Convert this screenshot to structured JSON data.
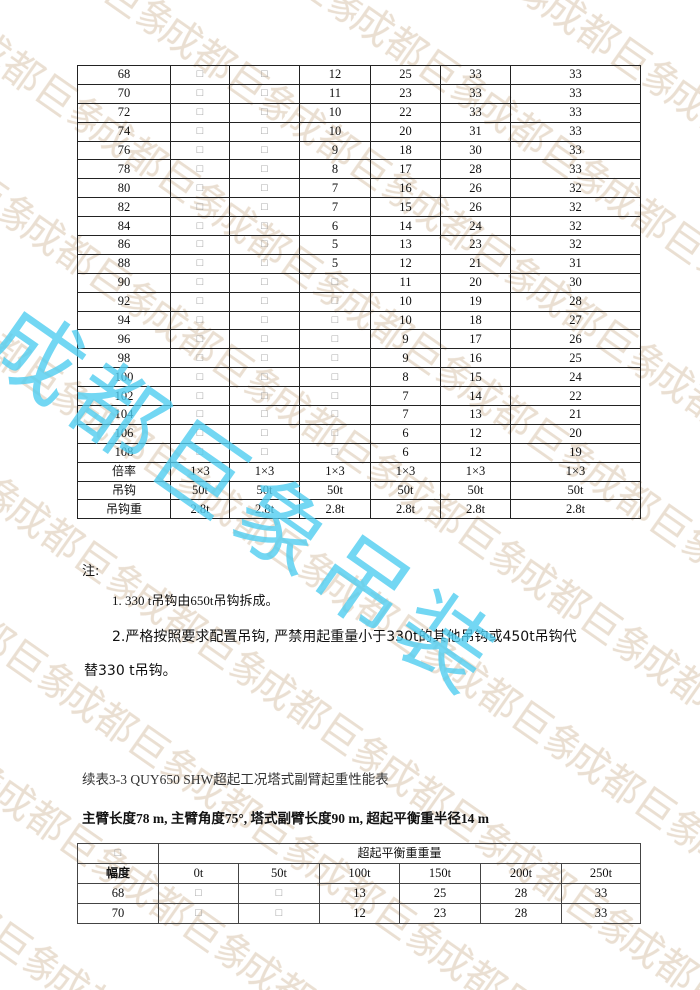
{
  "watermark": {
    "text": "成都巨象吊装",
    "tile_color": "#e8ddd0",
    "accent_color": "#50cdf0"
  },
  "table1": {
    "rows": [
      [
        "68",
        "□",
        "□",
        "12",
        "25",
        "33",
        "33"
      ],
      [
        "70",
        "□",
        "□",
        "11",
        "23",
        "33",
        "33"
      ],
      [
        "72",
        "□",
        "□",
        "10",
        "22",
        "33",
        "33"
      ],
      [
        "74",
        "□",
        "□",
        "10",
        "20",
        "31",
        "33"
      ],
      [
        "76",
        "□",
        "□",
        "9",
        "18",
        "30",
        "33"
      ],
      [
        "78",
        "□",
        "□",
        "8",
        "17",
        "28",
        "33"
      ],
      [
        "80",
        "□",
        "□",
        "7",
        "16",
        "26",
        "32"
      ],
      [
        "82",
        "□",
        "□",
        "7",
        "15",
        "26",
        "32"
      ],
      [
        "84",
        "□",
        "□",
        "6",
        "14",
        "24",
        "32"
      ],
      [
        "86",
        "□",
        "□",
        "5",
        "13",
        "23",
        "32"
      ],
      [
        "88",
        "□",
        "□",
        "5",
        "12",
        "21",
        "31"
      ],
      [
        "90",
        "□",
        "□",
        "□",
        "11",
        "20",
        "30"
      ],
      [
        "92",
        "□",
        "□",
        "□",
        "10",
        "19",
        "28"
      ],
      [
        "94",
        "□",
        "□",
        "□",
        "10",
        "18",
        "27"
      ],
      [
        "96",
        "□",
        "□",
        "□",
        "9",
        "17",
        "26"
      ],
      [
        "98",
        "□",
        "□",
        "□",
        "9",
        "16",
        "25"
      ],
      [
        "100",
        "□",
        "□",
        "□",
        "8",
        "15",
        "24"
      ],
      [
        "102",
        "□",
        "□",
        "□",
        "7",
        "14",
        "22"
      ],
      [
        "104",
        "□",
        "□",
        "□",
        "7",
        "13",
        "21"
      ],
      [
        "106",
        "□",
        "□",
        "□",
        "6",
        "12",
        "20"
      ],
      [
        "108",
        "□",
        "□",
        "□",
        "6",
        "12",
        "19"
      ],
      [
        "倍率",
        "1×3",
        "1×3",
        "1×3",
        "1×3",
        "1×3",
        "1×3"
      ],
      [
        "吊钩",
        "50t",
        "50t",
        "50t",
        "50t",
        "50t",
        "50t"
      ],
      [
        "吊钩重",
        "2.8t",
        "2.8t",
        "2.8t",
        "2.8t",
        "2.8t",
        "2.8t"
      ]
    ]
  },
  "notes": {
    "heading": "注:",
    "item1": "1. 330 t吊钩由650t吊钩拆成。",
    "item2_line1": "2.严格按照要求配置吊钩, 严禁用起重量小于330t的其他吊钩或450t吊钩代",
    "item2_line2": "替330  t吊钩。"
  },
  "table2": {
    "caption": "续表3-3 QUY650 SHW超起工况塔式副臂起重性能表",
    "subtitle": "主臂长度78 m, 主臂角度75°, 塔式副臂长度90 m, 超起平衡重半径14 m",
    "corner": "□",
    "group_header": "超起平衡重重量",
    "row_header": "幅度",
    "columns": [
      "0t",
      "50t",
      "100t",
      "150t",
      "200t",
      "250t"
    ],
    "rows": [
      [
        "68",
        "□",
        "□",
        "13",
        "25",
        "28",
        "33"
      ],
      [
        "70",
        "□",
        "□",
        "12",
        "23",
        "28",
        "33"
      ]
    ]
  }
}
